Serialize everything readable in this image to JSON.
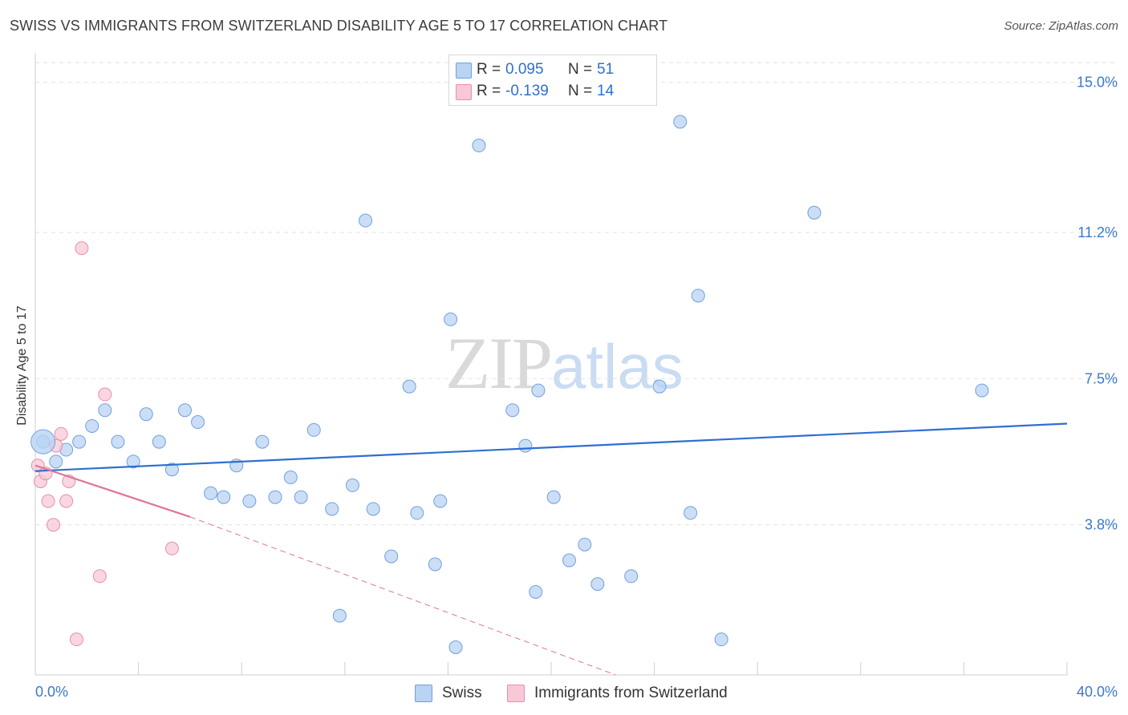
{
  "title": "SWISS VS IMMIGRANTS FROM SWITZERLAND DISABILITY AGE 5 TO 17 CORRELATION CHART",
  "source": "Source: ZipAtlas.com",
  "watermark": {
    "zip": "ZIP",
    "atlas": "atlas"
  },
  "legend": {
    "rows": [
      {
        "r_label": "R =",
        "r_value": "0.095",
        "n_label": "N =",
        "n_value": "51",
        "fill": "#b9d3f3",
        "stroke": "#6ea1e0"
      },
      {
        "r_label": "R =",
        "r_value": "-0.139",
        "n_label": "N =",
        "n_value": "14",
        "fill": "#f8c8d6",
        "stroke": "#e690aa"
      }
    ]
  },
  "bottom_legend": {
    "swiss": "Swiss",
    "immigrants": "Immigrants from Switzerland"
  },
  "chart_data": {
    "type": "scatter",
    "title": "SWISS VS IMMIGRANTS FROM SWITZERLAND DISABILITY AGE 5 TO 17 CORRELATION CHART",
    "xlabel": "",
    "ylabel": "Disability Age 5 to 17",
    "xlim": [
      0,
      40
    ],
    "ylim": [
      0,
      15.5
    ],
    "x_tick_labels": [
      "0.0%",
      "40.0%"
    ],
    "y_ticks": [
      3.8,
      7.5,
      11.2,
      15.0
    ],
    "y_tick_labels": [
      "3.8%",
      "7.5%",
      "11.2%",
      "15.0%"
    ],
    "grid": true,
    "legend_position": "top-center",
    "series": [
      {
        "name": "Swiss",
        "color": "#6ea1e0",
        "fill": "#b9d3f3",
        "points": [
          [
            0.3,
            5.9
          ],
          [
            0.8,
            5.4
          ],
          [
            1.2,
            5.7
          ],
          [
            1.7,
            5.9
          ],
          [
            2.2,
            6.3
          ],
          [
            2.7,
            6.7
          ],
          [
            3.2,
            5.9
          ],
          [
            3.8,
            5.4
          ],
          [
            4.3,
            6.6
          ],
          [
            4.8,
            5.9
          ],
          [
            5.3,
            5.2
          ],
          [
            5.8,
            6.7
          ],
          [
            6.3,
            6.4
          ],
          [
            6.8,
            4.6
          ],
          [
            7.3,
            4.5
          ],
          [
            7.8,
            5.3
          ],
          [
            8.3,
            4.4
          ],
          [
            8.8,
            5.9
          ],
          [
            9.3,
            4.5
          ],
          [
            9.9,
            5.0
          ],
          [
            10.3,
            4.5
          ],
          [
            10.8,
            6.2
          ],
          [
            11.5,
            4.2
          ],
          [
            11.8,
            1.5
          ],
          [
            12.3,
            4.8
          ],
          [
            12.8,
            11.5
          ],
          [
            13.1,
            4.2
          ],
          [
            13.8,
            3.0
          ],
          [
            14.5,
            7.3
          ],
          [
            14.8,
            4.1
          ],
          [
            15.5,
            2.8
          ],
          [
            15.7,
            4.4
          ],
          [
            16.1,
            9.0
          ],
          [
            16.3,
            0.7
          ],
          [
            17.2,
            13.4
          ],
          [
            18.5,
            6.7
          ],
          [
            19.0,
            5.8
          ],
          [
            19.4,
            2.1
          ],
          [
            19.5,
            7.2
          ],
          [
            20.1,
            4.5
          ],
          [
            20.7,
            2.9
          ],
          [
            21.3,
            3.3
          ],
          [
            21.8,
            2.3
          ],
          [
            23.1,
            2.5
          ],
          [
            24.2,
            7.3
          ],
          [
            25.0,
            14.0
          ],
          [
            25.4,
            4.1
          ],
          [
            25.7,
            9.6
          ],
          [
            26.6,
            0.9
          ],
          [
            30.2,
            11.7
          ],
          [
            36.7,
            7.2
          ]
        ]
      },
      {
        "name": "Immigrants from Switzerland",
        "color": "#e690aa",
        "fill": "#f8c8d6",
        "points": [
          [
            0.1,
            5.3
          ],
          [
            0.2,
            4.9
          ],
          [
            0.4,
            5.1
          ],
          [
            0.5,
            4.4
          ],
          [
            0.7,
            3.8
          ],
          [
            0.8,
            5.8
          ],
          [
            1.0,
            6.1
          ],
          [
            1.2,
            4.4
          ],
          [
            1.3,
            4.9
          ],
          [
            1.6,
            0.9
          ],
          [
            1.8,
            10.8
          ],
          [
            2.5,
            2.5
          ],
          [
            2.7,
            7.1
          ],
          [
            5.3,
            3.2
          ]
        ]
      }
    ],
    "trend_lines": [
      {
        "series": "Swiss",
        "x": [
          0,
          40
        ],
        "y": [
          5.16,
          6.36
        ],
        "style": "solid"
      },
      {
        "series": "Immigrants from Switzerland",
        "x": [
          0,
          6.0
        ],
        "y": [
          5.3,
          4.0
        ],
        "style": "solid"
      },
      {
        "series": "Immigrants from Switzerland",
        "x": [
          6.0,
          22.5
        ],
        "y": [
          4.0,
          0.0
        ],
        "style": "dashed"
      }
    ]
  }
}
